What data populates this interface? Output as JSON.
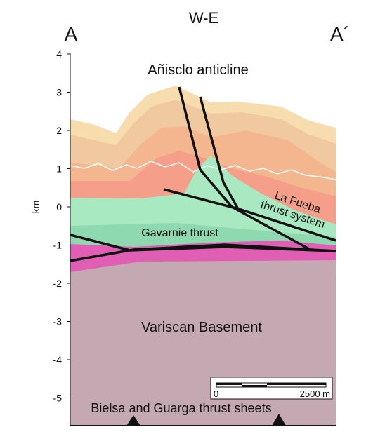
{
  "header": {
    "title": "W-E",
    "left_label": "A",
    "right_label": "A´"
  },
  "axis": {
    "label": "km",
    "ticks": [
      4,
      3,
      2,
      1,
      0,
      -1,
      -2,
      -3,
      -4,
      -5
    ]
  },
  "labels": {
    "anticline": "Añisclo anticline",
    "fueba": [
      "La Fueba",
      "thrust system"
    ],
    "gavarnie": "Gavarnie thrust",
    "basement": "Variscan Basement",
    "sheets": "Bielsa and Guarga thrust sheets"
  },
  "scale_bar": {
    "start": "0",
    "end": "2500 m"
  }
}
